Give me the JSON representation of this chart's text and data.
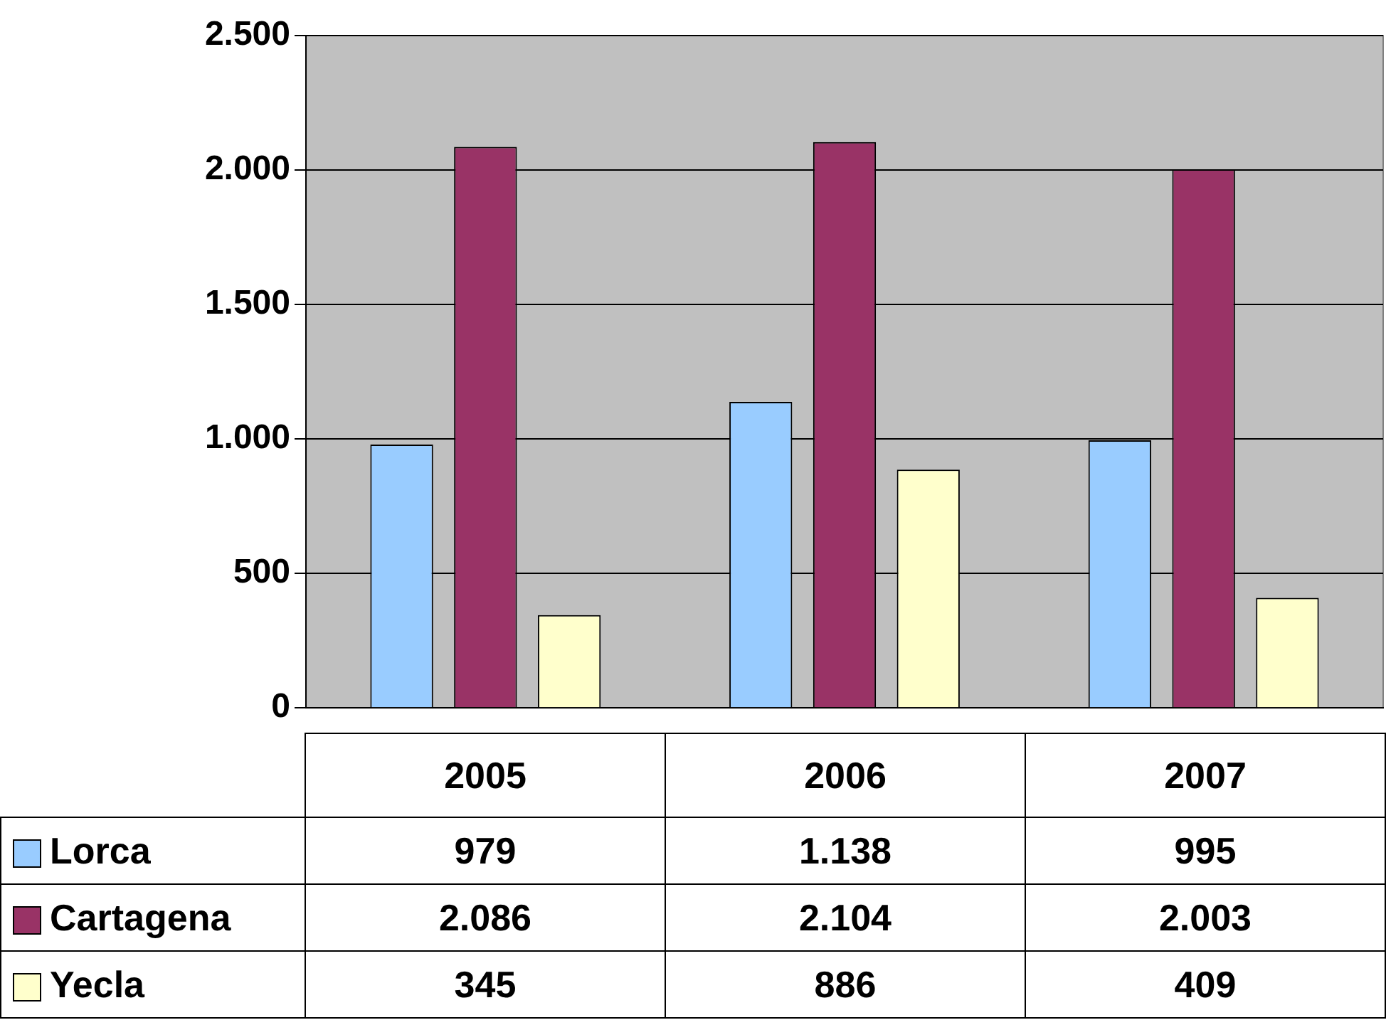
{
  "chart_data": {
    "type": "bar",
    "categories": [
      "2005",
      "2006",
      "2007"
    ],
    "series": [
      {
        "name": "Lorca",
        "color": "#99ccff",
        "values": [
          979,
          1138,
          995
        ],
        "value_labels": [
          "979",
          "1.138",
          "995"
        ]
      },
      {
        "name": "Cartagena",
        "color": "#993366",
        "values": [
          2086,
          2104,
          2003
        ],
        "value_labels": [
          "2.086",
          "2.104",
          "2.003"
        ]
      },
      {
        "name": "Yecla",
        "color": "#ffffcc",
        "values": [
          345,
          886,
          409
        ],
        "value_labels": [
          "345",
          "886",
          "409"
        ]
      }
    ],
    "ylim": [
      0,
      2500
    ],
    "yticks": [
      0,
      {
        "value": 500,
        "label": "500"
      },
      {
        "value": 1000,
        "label": "1.000"
      },
      {
        "value": 1500,
        "label": "1.500"
      },
      {
        "value": 2000,
        "label": "2.000"
      },
      {
        "value": 2500,
        "label": "2.500"
      }
    ],
    "grid": "y",
    "legend": "bottom left"
  }
}
